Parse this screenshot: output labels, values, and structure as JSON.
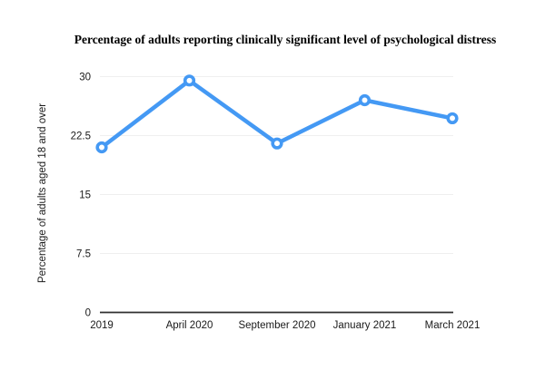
{
  "title": "Percentage of adults reporting clinically significant level of psychological distress",
  "colors": {
    "line": "#4499F4",
    "marker_fill": "#ffffff",
    "grid": "#efefef",
    "axis": "#2f2f2f",
    "text": "#1a1a1a",
    "background": "#ffffff"
  },
  "chart_data": {
    "type": "line",
    "title": "Percentage of adults reporting clinically significant level of psychological distress",
    "categories": [
      "2019",
      "April 2020",
      "September 2020",
      "January 2021",
      "March 2021"
    ],
    "values": [
      21,
      29.5,
      21.5,
      27,
      24.7
    ],
    "xlabel": "",
    "ylabel": "Percentage of adults aged 18 and over",
    "ylim": [
      0,
      30
    ],
    "yticks": [
      0,
      7.5,
      15,
      22.5,
      30
    ],
    "grid": true,
    "legend": "none",
    "marker": "open-circle",
    "line_width": 4.5
  }
}
